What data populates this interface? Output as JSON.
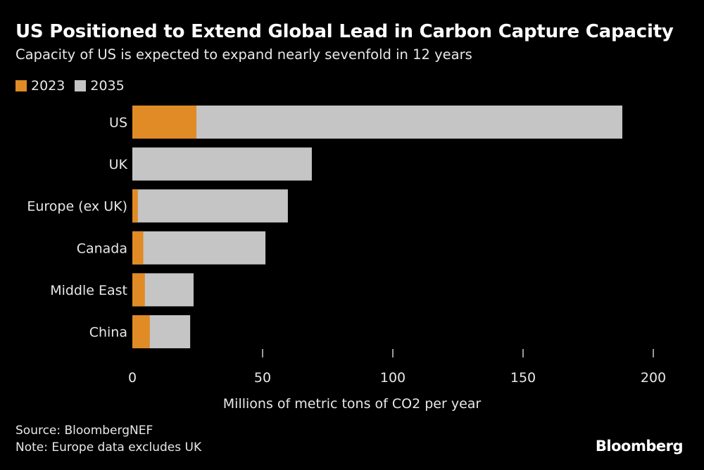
{
  "chart_data": {
    "type": "bar",
    "orientation": "horizontal",
    "title": "US Positioned to Extend Global Lead in Carbon Capture Capacity",
    "subtitle": "Capacity of US is expected to expand nearly sevenfold in 12 years",
    "categories": [
      "US",
      "UK",
      "Europe (ex UK)",
      "Canada",
      "Middle East",
      "China"
    ],
    "series": [
      {
        "name": "2023",
        "color": "#e08b25",
        "values": [
          24.6,
          0,
          2.1,
          4.2,
          4.8,
          6.7
        ]
      },
      {
        "name": "2035",
        "color": "#c5c5c5",
        "values": [
          188.1,
          68.9,
          59.7,
          51.1,
          23.5,
          22.2
        ]
      }
    ],
    "xlabel": "Millions of metric tons of CO2 per year",
    "xlim": [
      0,
      200
    ],
    "xticks": [
      0,
      50,
      100,
      150,
      200
    ],
    "grid": false,
    "legend": "top-left"
  },
  "footer": {
    "source": "Source: BloombergNEF",
    "note": "Note: Europe data excludes UK",
    "logo": "Bloomberg"
  }
}
